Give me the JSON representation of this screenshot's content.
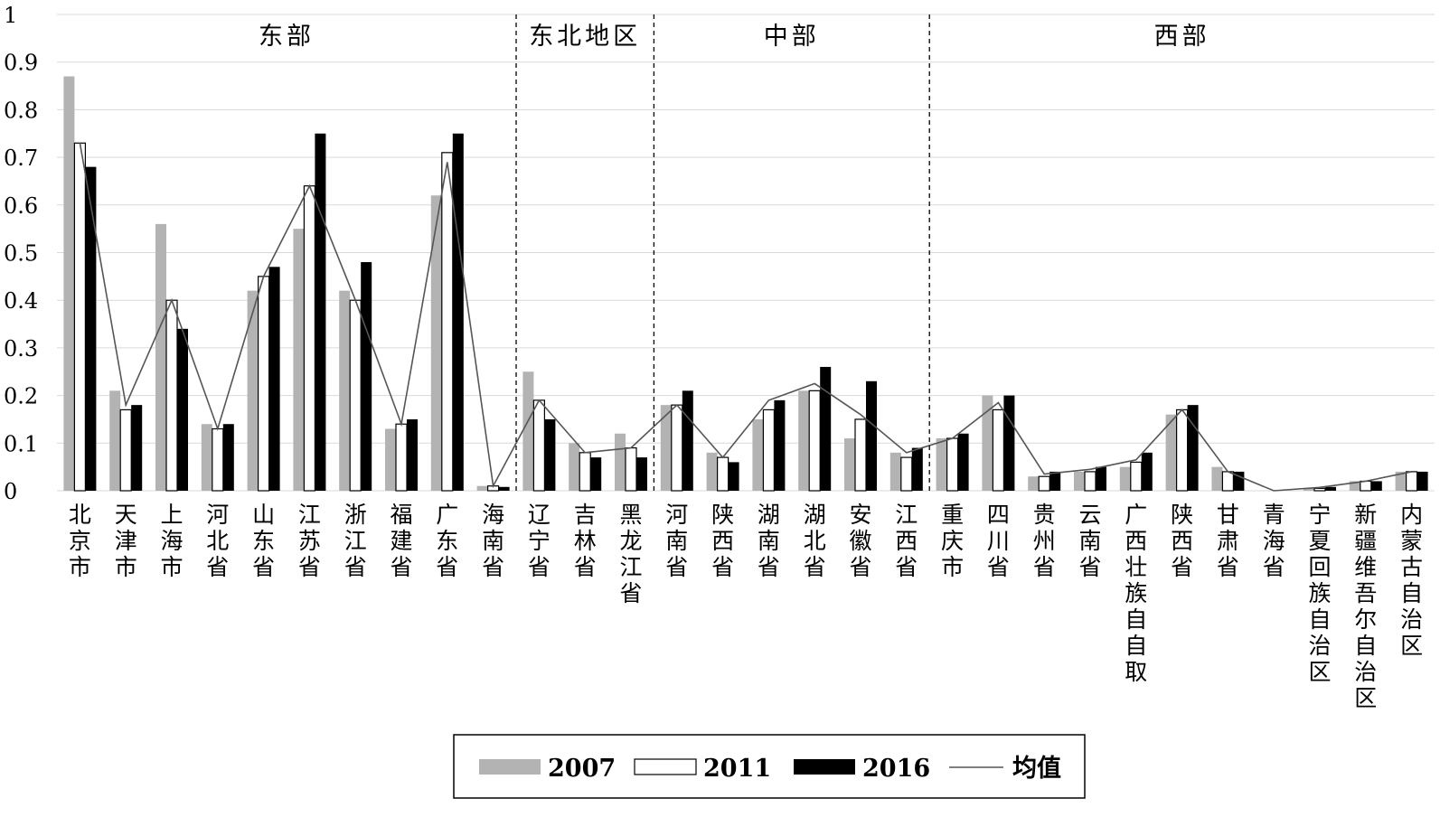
{
  "chart_data": {
    "type": "bar",
    "ylim": [
      0,
      1
    ],
    "yticks": [
      "0",
      "0.1",
      "0.2",
      "0.3",
      "0.4",
      "0.5",
      "0.6",
      "0.7",
      "0.8",
      "0.9",
      "1"
    ],
    "grid": true,
    "legend_position": "bottom",
    "categories": [
      "北京市",
      "天津市",
      "上海市",
      "河北省",
      "山东省",
      "江苏省",
      "浙江省",
      "福建省",
      "广东省",
      "海南省",
      "辽宁省",
      "吉林省",
      "黑龙江省",
      "河南省",
      "陕西省",
      "湖南省",
      "湖北省",
      "安徽省",
      "江西省",
      "重庆市",
      "四川省",
      "贵州省",
      "云南省",
      "广西壮族自自取",
      "陕西省",
      "甘肃省",
      "青海省",
      "宁夏回族自治区",
      "新疆维吾尔自治区",
      "内蒙古自治区"
    ],
    "series": [
      {
        "name": "2007",
        "values": [
          0.87,
          0.21,
          0.56,
          0.14,
          0.42,
          0.55,
          0.42,
          0.13,
          0.62,
          0.01,
          0.25,
          0.1,
          0.12,
          0.18,
          0.08,
          0.15,
          0.21,
          0.11,
          0.08,
          0.11,
          0.2,
          0.03,
          0.04,
          0.05,
          0.16,
          0.05,
          0.0,
          0.005,
          0.02,
          0.04
        ]
      },
      {
        "name": "2011",
        "values": [
          0.73,
          0.17,
          0.4,
          0.13,
          0.45,
          0.64,
          0.4,
          0.14,
          0.71,
          0.01,
          0.19,
          0.08,
          0.09,
          0.18,
          0.07,
          0.17,
          0.21,
          0.15,
          0.07,
          0.11,
          0.17,
          0.03,
          0.04,
          0.06,
          0.17,
          0.04,
          0.0,
          0.005,
          0.02,
          0.04
        ]
      },
      {
        "name": "2016",
        "values": [
          0.68,
          0.18,
          0.34,
          0.14,
          0.47,
          0.75,
          0.48,
          0.15,
          0.75,
          0.008,
          0.15,
          0.07,
          0.07,
          0.21,
          0.06,
          0.19,
          0.26,
          0.23,
          0.09,
          0.12,
          0.2,
          0.04,
          0.05,
          0.08,
          0.18,
          0.04,
          0.0,
          0.008,
          0.02,
          0.04
        ]
      },
      {
        "name": "均值",
        "type": "line",
        "values": [
          0.73,
          0.18,
          0.4,
          0.13,
          0.45,
          0.64,
          0.4,
          0.14,
          0.69,
          0.01,
          0.19,
          0.08,
          0.09,
          0.18,
          0.07,
          0.19,
          0.225,
          0.16,
          0.08,
          0.11,
          0.185,
          0.035,
          0.045,
          0.065,
          0.17,
          0.04,
          0.0,
          0.007,
          0.02,
          0.04
        ]
      }
    ],
    "regions": [
      {
        "name": "东部",
        "start": 0,
        "end": 9
      },
      {
        "name": "东北地区",
        "start": 10,
        "end": 12
      },
      {
        "name": "中部",
        "start": 13,
        "end": 18
      },
      {
        "name": "西部",
        "start": 19,
        "end": 29
      }
    ],
    "colors": {
      "2007": "#b3b3b3",
      "2011": "#ffffff",
      "2016": "#000000",
      "均值": "#555555"
    }
  }
}
